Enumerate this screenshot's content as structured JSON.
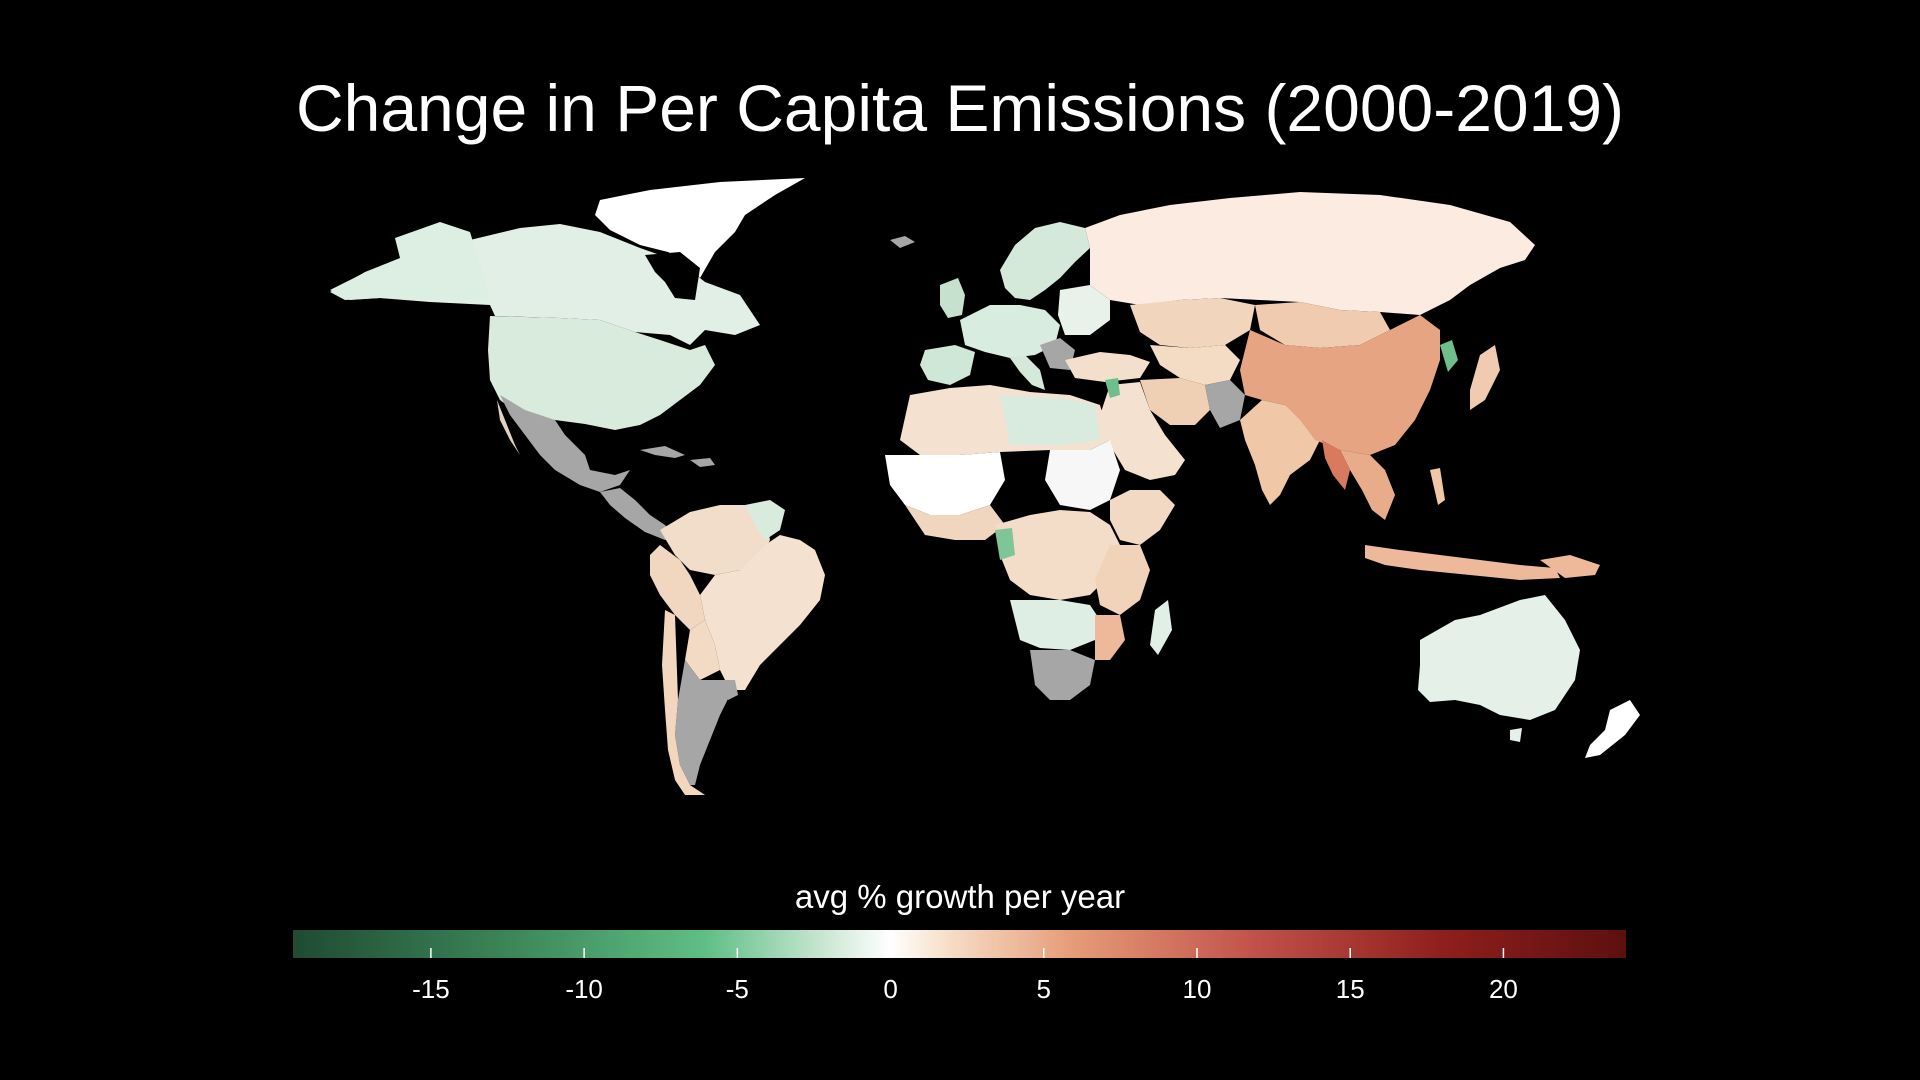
{
  "title": "Change in Per Capita Emissions (2000-2019)",
  "legend": {
    "label": "avg % growth per year",
    "min": -19.5,
    "max": 24,
    "ticks": [
      {
        "value": -15,
        "label": "-15"
      },
      {
        "value": -10,
        "label": "-10"
      },
      {
        "value": -5,
        "label": "-5"
      },
      {
        "value": 0,
        "label": "0"
      },
      {
        "value": 5,
        "label": "5"
      },
      {
        "value": 10,
        "label": "10"
      },
      {
        "value": 15,
        "label": "15"
      },
      {
        "value": 20,
        "label": "20"
      }
    ],
    "color_stops": [
      {
        "value": -19.5,
        "color": "#1f4a33"
      },
      {
        "value": -12,
        "color": "#3e8a5b"
      },
      {
        "value": -6,
        "color": "#5fbf86"
      },
      {
        "value": -2,
        "color": "#cfe8d7"
      },
      {
        "value": 0,
        "color": "#ffffff"
      },
      {
        "value": 2,
        "color": "#f6dcc4"
      },
      {
        "value": 6,
        "color": "#e59b78"
      },
      {
        "value": 12,
        "color": "#c0504a"
      },
      {
        "value": 18,
        "color": "#8e1f1c"
      },
      {
        "value": 24,
        "color": "#5c100e"
      }
    ]
  },
  "colors": {
    "background": "#000000",
    "no_data": "#a6a6a6",
    "text": "#ffffff"
  }
}
